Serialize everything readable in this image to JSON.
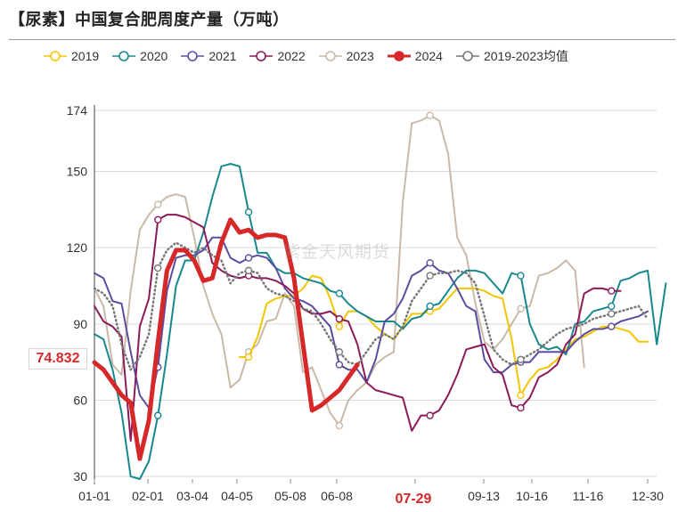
{
  "title": "【尿素】中国复合肥周度产量（万吨）",
  "watermark": "紫金天风期货",
  "cursor": {
    "y_label": "74.832",
    "x_label": "07-29"
  },
  "chart_data": {
    "type": "line",
    "title": "【尿素】中国复合肥周度产量（万吨）",
    "xlabel": "",
    "ylabel": "",
    "x_tick_labels": [
      "01-01",
      "02-01",
      "03-04",
      "04-05",
      "05-08",
      "06-08",
      "07-29",
      "09-13",
      "10-16",
      "11-16",
      "12-30"
    ],
    "y_ticks": [
      30,
      60,
      90,
      120,
      150,
      174
    ],
    "ylim": [
      29,
      174
    ],
    "grid": true,
    "legend_position": "top",
    "series": [
      {
        "name": "2019",
        "color": "#f5c400",
        "style": "solid",
        "marker": "circle-open",
        "values": [
          null,
          null,
          null,
          null,
          null,
          null,
          null,
          null,
          null,
          null,
          null,
          null,
          null,
          null,
          null,
          null,
          77,
          77,
          85,
          98,
          100,
          101,
          101,
          104,
          109,
          108,
          100,
          89,
          95,
          95,
          93,
          89,
          86,
          84,
          89,
          94,
          94,
          95,
          96,
          100,
          104,
          104,
          104,
          103,
          101,
          100,
          84,
          62,
          68,
          72,
          73,
          76,
          80,
          84,
          85,
          87,
          89,
          89,
          88,
          87,
          83,
          83
        ]
      },
      {
        "name": "2020",
        "color": "#17888e",
        "style": "solid",
        "marker": "circle-open",
        "values": [
          86,
          84,
          72,
          55,
          30,
          29,
          36,
          54,
          78,
          105,
          115,
          115,
          126,
          140,
          152,
          153,
          152,
          134,
          118,
          118,
          112,
          110,
          110,
          108,
          107,
          106,
          103,
          102,
          98,
          95,
          93,
          91,
          91,
          91,
          88,
          92,
          93,
          97,
          98,
          103,
          108,
          111,
          111,
          110,
          106,
          102,
          110,
          109,
          90,
          82,
          80,
          81,
          78,
          90,
          91,
          95,
          96,
          97,
          107,
          108,
          110,
          111,
          82,
          106
        ]
      },
      {
        "name": "2021",
        "color": "#5a4da0",
        "style": "solid",
        "marker": "circle-open",
        "values": [
          110,
          108,
          99,
          98,
          79,
          62,
          57,
          73,
          103,
          116,
          117,
          117,
          119,
          124,
          124,
          116,
          114,
          116,
          117,
          116,
          112,
          104,
          100,
          99,
          97,
          93,
          89,
          74,
          72,
          72,
          67,
          76,
          91,
          94,
          100,
          109,
          111,
          114,
          111,
          110,
          104,
          97,
          95,
          76,
          71,
          71,
          74,
          75,
          75,
          79,
          79,
          79,
          79,
          83,
          86,
          88,
          88,
          89,
          91,
          92,
          93,
          95
        ]
      },
      {
        "name": "2022",
        "color": "#8a1a5a",
        "style": "solid",
        "marker": "circle-open",
        "values": [
          97,
          91,
          89,
          85,
          44,
          89,
          100,
          131,
          133,
          133,
          132,
          130,
          128,
          114,
          111,
          109,
          108,
          109,
          108,
          108,
          107,
          105,
          102,
          96,
          94,
          94,
          95,
          92,
          91,
          82,
          67,
          64,
          63,
          62,
          61,
          48,
          54,
          54,
          56,
          62,
          70,
          80,
          81,
          82,
          73,
          70,
          58,
          57,
          61,
          69,
          71,
          74,
          82,
          86,
          102,
          104,
          104,
          103,
          103
        ]
      },
      {
        "name": "2023",
        "color": "#c9b9a6",
        "style": "solid",
        "marker": "circle-open",
        "values": [
          104,
          97,
          74,
          70,
          103,
          127,
          133,
          137,
          140,
          141,
          140,
          124,
          105,
          94,
          86,
          65,
          68,
          79,
          82,
          91,
          92,
          102,
          97,
          71,
          73,
          64,
          55,
          50,
          60,
          64,
          67,
          74,
          77,
          79,
          138,
          169,
          170,
          172,
          170,
          157,
          124,
          117,
          98,
          83,
          80,
          84,
          90,
          96,
          97,
          109,
          110,
          112,
          115,
          111,
          73
        ]
      },
      {
        "name": "2024",
        "color": "#d62828",
        "style": "bold",
        "marker": "circle-filled",
        "values": [
          74.83,
          72,
          67,
          62,
          59,
          37,
          52,
          83,
          111,
          119,
          119,
          115,
          107,
          108,
          122,
          131,
          126,
          127,
          124,
          125,
          125,
          124,
          108,
          82,
          56,
          58,
          61,
          64,
          69,
          74
        ]
      },
      {
        "name": "2019-2023均值",
        "color": "#777777",
        "style": "dotted",
        "marker": "circle-open",
        "values": [
          104,
          102,
          97,
          82,
          72,
          77,
          86,
          112,
          119,
          122,
          120,
          118,
          120,
          117,
          115,
          106,
          110,
          111,
          110,
          104,
          102,
          101,
          99,
          96,
          95,
          90,
          84,
          79,
          75,
          74,
          79,
          84,
          86,
          84,
          89,
          99,
          104,
          109,
          110,
          110,
          111,
          110,
          106,
          93,
          80,
          76,
          74,
          76,
          78,
          80,
          83,
          86,
          88,
          89,
          90,
          92,
          93,
          94,
          95,
          96,
          97,
          92
        ]
      }
    ]
  }
}
